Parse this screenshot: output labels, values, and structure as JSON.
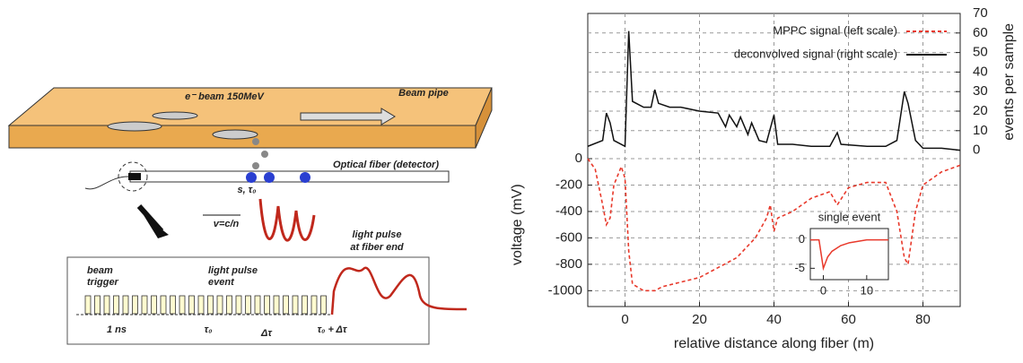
{
  "diagram": {
    "labels": [
      "Beam pipe",
      "e⁻ beam 150MeV",
      "Optical fiber (detector)",
      "s, τ₀",
      "v=c/n",
      "light pulse",
      "at fiber end",
      "beam",
      "trigger",
      "light pulse",
      "event",
      "1 ns",
      "τ₀",
      "Δτ",
      "τ₀ + Δτ"
    ]
  },
  "chart_data": [
    {
      "type": "line",
      "xlabel": "relative distance along fiber (m)",
      "ylabel": "voltage (mV)",
      "y2label": "events per sample",
      "xlim": [
        -10,
        90
      ],
      "xticks": [
        0,
        20,
        40,
        60,
        80
      ],
      "ylim": [
        -1120,
        1100
      ],
      "yticks": [
        0,
        -200,
        -400,
        -600,
        -800,
        -1000
      ],
      "y2lim": [
        -80,
        70
      ],
      "y2ticks": [
        0,
        10,
        20,
        30,
        40,
        50,
        60,
        70
      ],
      "grid": true,
      "legend": "upper right",
      "series": [
        {
          "name": "MPPC signal (left scale)",
          "color": "#e8392b",
          "dash": true,
          "x": [
            -10,
            -8,
            -6,
            -5,
            -4,
            -3,
            -1,
            0,
            1,
            2,
            5,
            8,
            10,
            20,
            30,
            35,
            38,
            39,
            40,
            41,
            45,
            50,
            55,
            57,
            60,
            65,
            70,
            73,
            75,
            76,
            78,
            80,
            85,
            90
          ],
          "values": [
            0,
            -80,
            -350,
            -500,
            -450,
            -200,
            -60,
            -150,
            -700,
            -950,
            -1000,
            -1000,
            -970,
            -900,
            -750,
            -600,
            -450,
            -350,
            -550,
            -450,
            -400,
            -300,
            -250,
            -350,
            -220,
            -180,
            -180,
            -400,
            -750,
            -800,
            -400,
            -200,
            -100,
            -50
          ]
        },
        {
          "name": "deconvolved signal (right scale)",
          "color": "#111111",
          "axis": "y2",
          "x": [
            -10,
            -6,
            -5,
            -4,
            -3,
            -1,
            0,
            1,
            2,
            5,
            7,
            8,
            9,
            12,
            15,
            20,
            25,
            27,
            28,
            30,
            31,
            33,
            34,
            36,
            38,
            40,
            41,
            45,
            50,
            55,
            57,
            58,
            65,
            70,
            73,
            75,
            76,
            78,
            80,
            85,
            90
          ],
          "values": [
            2,
            5,
            19,
            14,
            5,
            3,
            2,
            61,
            25,
            22,
            22,
            31,
            24,
            22,
            22,
            20,
            19,
            12,
            18,
            12,
            17,
            8,
            14,
            5,
            4,
            18,
            3,
            3,
            2,
            2,
            9,
            3,
            2,
            2,
            5,
            30,
            24,
            5,
            1,
            1,
            0
          ]
        }
      ]
    },
    {
      "type": "line",
      "title": "single event",
      "xlim": [
        -3,
        15
      ],
      "xticks": [
        0,
        10
      ],
      "ylim": [
        -7,
        2
      ],
      "yticks": [
        0,
        -5
      ],
      "series": [
        {
          "color": "#e8392b",
          "x": [
            -3,
            -1,
            0,
            1,
            2,
            4,
            6,
            10,
            15
          ],
          "values": [
            0,
            0,
            -5,
            -3,
            -2,
            -1,
            -0.5,
            0,
            0
          ]
        }
      ]
    }
  ]
}
